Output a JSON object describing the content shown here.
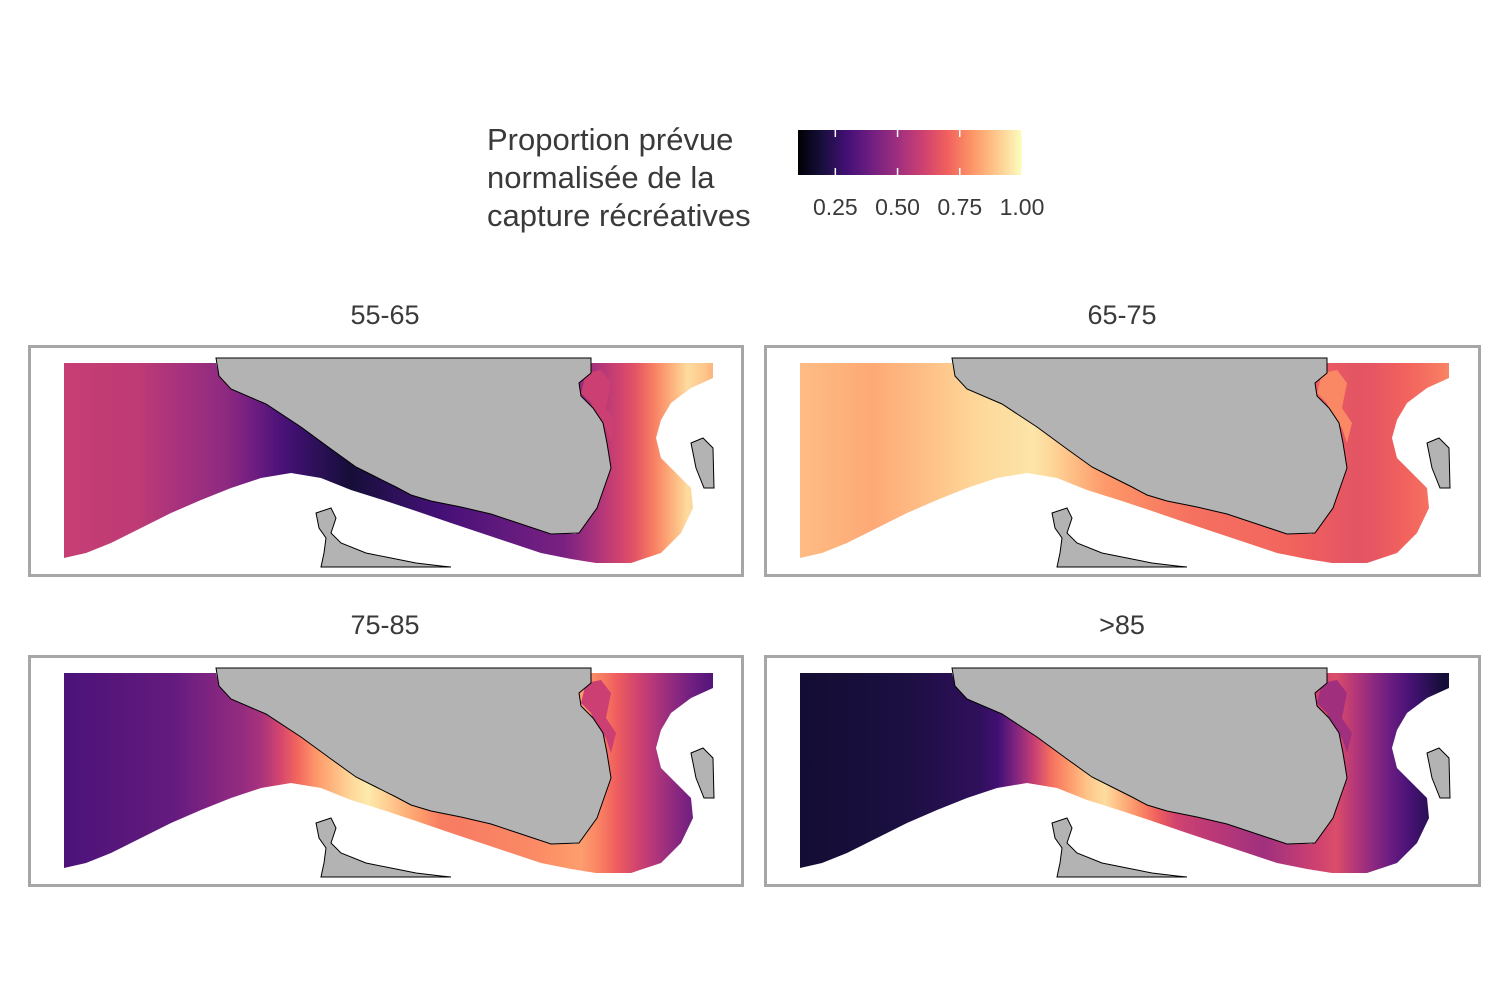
{
  "legend": {
    "title_lines": [
      "Proportion prévue",
      "normalisée de la",
      "capture récréatives"
    ],
    "range": [
      0.1,
      1.0
    ],
    "ticks": [
      {
        "value": 0.25,
        "label": "0.25"
      },
      {
        "value": 0.5,
        "label": "0.50"
      },
      {
        "value": 0.75,
        "label": "0.75"
      },
      {
        "value": 1.0,
        "label": "1.00"
      }
    ],
    "palette": [
      "#000004",
      "#180f3e",
      "#451077",
      "#721f81",
      "#9e2f7f",
      "#cd4071",
      "#f1605d",
      "#fd9567",
      "#fec98d",
      "#fcfdbf"
    ]
  },
  "colors": {
    "land": "#b3b3b3",
    "coastline": "#000000",
    "panel_border": "#a6a6a6"
  },
  "panels": [
    {
      "id": "p1",
      "title": "55-65",
      "profile": [
        {
          "u": 0.0,
          "v": 0.55
        },
        {
          "u": 0.15,
          "v": 0.52
        },
        {
          "u": 0.28,
          "v": 0.4
        },
        {
          "u": 0.36,
          "v": 0.22
        },
        {
          "u": 0.45,
          "v": 0.1
        },
        {
          "u": 0.55,
          "v": 0.2
        },
        {
          "u": 0.65,
          "v": 0.28
        },
        {
          "u": 0.75,
          "v": 0.35
        },
        {
          "u": 0.85,
          "v": 0.62
        },
        {
          "u": 0.93,
          "v": 0.95
        },
        {
          "u": 1.0,
          "v": 0.7
        }
      ],
      "inlet_value": 0.55
    },
    {
      "id": "p2",
      "title": "65-75",
      "profile": [
        {
          "u": 0.0,
          "v": 0.88
        },
        {
          "u": 0.15,
          "v": 0.82
        },
        {
          "u": 0.3,
          "v": 0.92
        },
        {
          "u": 0.38,
          "v": 0.95
        },
        {
          "u": 0.48,
          "v": 0.78
        },
        {
          "u": 0.6,
          "v": 0.7
        },
        {
          "u": 0.72,
          "v": 0.68
        },
        {
          "u": 0.84,
          "v": 0.62
        },
        {
          "u": 0.93,
          "v": 0.7
        },
        {
          "u": 1.0,
          "v": 0.8
        }
      ],
      "inlet_value": 0.75
    },
    {
      "id": "p3",
      "title": "75-85",
      "profile": [
        {
          "u": 0.0,
          "v": 0.22
        },
        {
          "u": 0.2,
          "v": 0.3
        },
        {
          "u": 0.32,
          "v": 0.45
        },
        {
          "u": 0.4,
          "v": 0.78
        },
        {
          "u": 0.47,
          "v": 0.97
        },
        {
          "u": 0.58,
          "v": 0.72
        },
        {
          "u": 0.7,
          "v": 0.75
        },
        {
          "u": 0.78,
          "v": 0.8
        },
        {
          "u": 0.86,
          "v": 0.55
        },
        {
          "u": 0.94,
          "v": 0.3
        },
        {
          "u": 1.0,
          "v": 0.18
        }
      ],
      "inlet_value": 0.55
    },
    {
      "id": "p4",
      "title": ">85",
      "profile": [
        {
          "u": 0.0,
          "v": 0.08
        },
        {
          "u": 0.2,
          "v": 0.12
        },
        {
          "u": 0.32,
          "v": 0.18
        },
        {
          "u": 0.4,
          "v": 0.7
        },
        {
          "u": 0.47,
          "v": 0.95
        },
        {
          "u": 0.58,
          "v": 0.55
        },
        {
          "u": 0.7,
          "v": 0.45
        },
        {
          "u": 0.8,
          "v": 0.6
        },
        {
          "u": 0.88,
          "v": 0.3
        },
        {
          "u": 0.95,
          "v": 0.1
        },
        {
          "u": 1.0,
          "v": 0.08
        }
      ],
      "inlet_value": 0.45
    }
  ]
}
